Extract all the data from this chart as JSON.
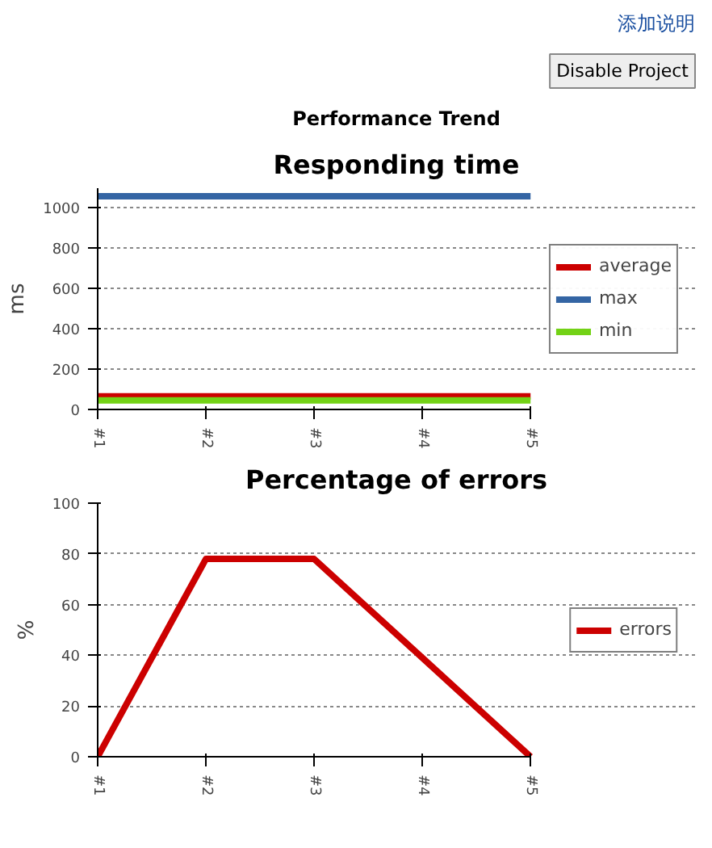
{
  "chart_data": [
    {
      "type": "line",
      "title": "Responding time",
      "ylabel": "ms",
      "categories": [
        "#1",
        "#2",
        "#3",
        "#4",
        "#5"
      ],
      "ylim": [
        0,
        1095
      ],
      "yticks": [
        0,
        200,
        400,
        600,
        800,
        1000
      ],
      "grid": "y",
      "legend": "right",
      "annotations": [
        "添加说明",
        "Disable Project",
        "Performance Trend"
      ],
      "series": [
        {
          "name": "average",
          "color": "#cc0000",
          "values": [
            65,
            65,
            65,
            65,
            65
          ]
        },
        {
          "name": "max",
          "color": "#3465a4",
          "values": [
            1055,
            1055,
            1055,
            1055,
            1055
          ]
        },
        {
          "name": "min",
          "color": "#73d216",
          "values": [
            45,
            45,
            45,
            45,
            45
          ]
        }
      ]
    },
    {
      "type": "line",
      "title": "Percentage of errors",
      "ylabel": "%",
      "categories": [
        "#1",
        "#2",
        "#3",
        "#4",
        "#5"
      ],
      "ylim": [
        0,
        100
      ],
      "yticks": [
        0,
        20,
        40,
        60,
        80,
        100
      ],
      "grid": "y",
      "legend": "right",
      "series": [
        {
          "name": "errors",
          "color": "#cc0000",
          "values": [
            0,
            78,
            78,
            39,
            0
          ]
        }
      ]
    }
  ]
}
